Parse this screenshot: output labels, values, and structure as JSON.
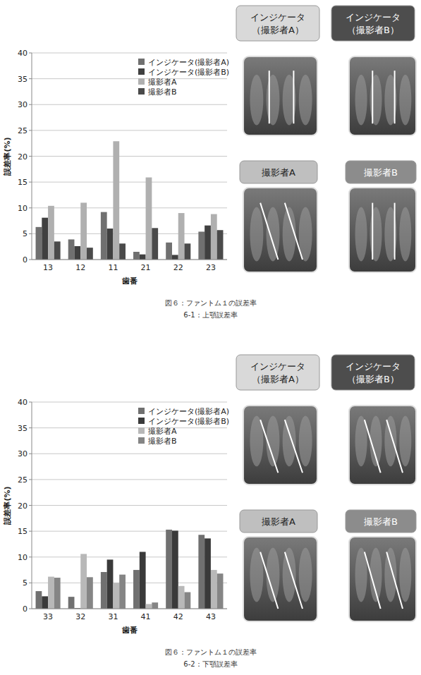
{
  "chart_data": [
    {
      "type": "bar",
      "title": "図６：ファントム１の誤差率",
      "subtitle": "6-1：上顎誤差率",
      "x_label": "歯番",
      "y_label": "誤差率(%)",
      "categories": [
        "13",
        "12",
        "11",
        "21",
        "22",
        "23"
      ],
      "series": [
        {
          "name": "インジケータ(撮影者A)",
          "color": "#707070",
          "values": [
            6.3,
            3.9,
            9.2,
            1.5,
            3.3,
            5.4
          ]
        },
        {
          "name": "インジケータ(撮影者B)",
          "color": "#404040",
          "values": [
            8.1,
            2.6,
            6.0,
            1.0,
            0.9,
            6.6
          ]
        },
        {
          "name": "撮影者A",
          "color": "#b0b0b0",
          "values": [
            10.4,
            11.0,
            22.9,
            15.9,
            9.0,
            8.8
          ]
        },
        {
          "name": "撮影者B",
          "color": "#4a4a4a",
          "values": [
            3.5,
            2.3,
            3.1,
            6.1,
            3.1,
            5.7
          ]
        }
      ],
      "ylim": [
        0,
        40
      ],
      "yticks": [
        0,
        5,
        10,
        15,
        20,
        25,
        30,
        35,
        40
      ],
      "grid": true,
      "legend": "top-right",
      "annotations": [
        "インジケータ（撮影者A）",
        "インジケータ（撮影者B）",
        "撮影者A",
        "撮影者B"
      ]
    },
    {
      "type": "bar",
      "title": "図６：ファントム１の誤差率",
      "subtitle": "6-2：下顎誤差率",
      "x_label": "歯番",
      "y_label": "誤差率(%)",
      "categories": [
        "33",
        "32",
        "31",
        "41",
        "42",
        "43"
      ],
      "series": [
        {
          "name": "インジケータ(撮影者A)",
          "color": "#707070",
          "values": [
            3.4,
            2.3,
            7.1,
            7.5,
            15.3,
            14.3
          ]
        },
        {
          "name": "インジケータ(撮影者B)",
          "color": "#3a3a3a",
          "values": [
            2.4,
            0.1,
            9.5,
            11.0,
            15.1,
            13.6
          ]
        },
        {
          "name": "撮影者A",
          "color": "#b8b8b8",
          "values": [
            6.2,
            10.6,
            5.0,
            0.9,
            4.4,
            7.5
          ]
        },
        {
          "name": "撮影者B",
          "color": "#858585",
          "values": [
            6.0,
            6.1,
            6.6,
            1.2,
            3.2,
            6.8
          ]
        }
      ],
      "ylim": [
        0,
        40
      ],
      "yticks": [
        0,
        5,
        10,
        15,
        20,
        25,
        30,
        35,
        40
      ],
      "grid": true,
      "legend": "top-right",
      "annotations": [
        "インジケータ（撮影者A）",
        "インジケータ（撮影者B）",
        "撮影者A",
        "撮影者B"
      ]
    }
  ]
}
